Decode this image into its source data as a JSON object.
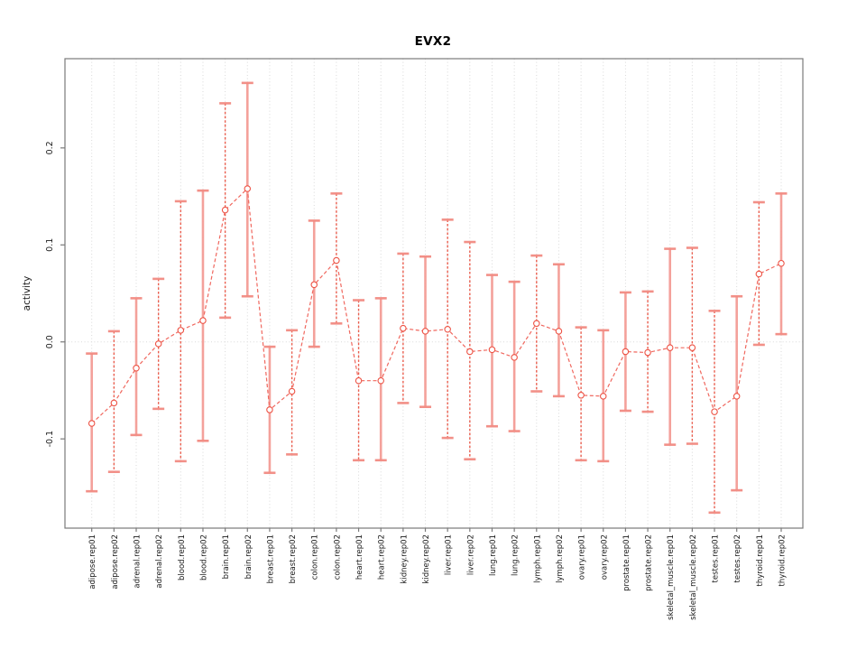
{
  "title": "EVX2",
  "chart_data": {
    "type": "errorbar-line",
    "title": "EVX2",
    "xlabel": "",
    "ylabel": "activity",
    "ylim": [
      -0.192,
      0.292
    ],
    "yticks": [
      -0.1,
      0.0,
      0.1,
      0.2
    ],
    "ytick_labels": [
      "-0.1",
      "0.0",
      "0.1",
      "0.2"
    ],
    "grid": {
      "vertical_dotted_per_category": true,
      "horizontal_dotted_at_zero": true
    },
    "legend": "none",
    "categories": [
      "adipose.rep01",
      "adipose.rep02",
      "adrenal.rep01",
      "adrenal.rep02",
      "blood.rep01",
      "blood.rep02",
      "brain.rep01",
      "brain.rep02",
      "breast.rep01",
      "breast.rep02",
      "colon.rep01",
      "colon.rep02",
      "heart.rep01",
      "heart.rep02",
      "kidney.rep01",
      "kidney.rep02",
      "liver.rep01",
      "liver.rep02",
      "lung.rep01",
      "lung.rep02",
      "lymph.rep01",
      "lymph.rep02",
      "ovary.rep01",
      "ovary.rep02",
      "prostate.rep01",
      "prostate.rep02",
      "skeletal_muscle.rep01",
      "skeletal_muscle.rep02",
      "testes.rep01",
      "testes.rep02",
      "thyroid.rep01",
      "thyroid.rep02"
    ],
    "series": [
      {
        "name": "activity",
        "center": [
          -0.084,
          -0.063,
          -0.027,
          -0.002,
          0.012,
          0.022,
          0.136,
          0.158,
          -0.07,
          -0.051,
          0.059,
          0.084,
          -0.04,
          -0.04,
          0.014,
          0.011,
          0.013,
          -0.01,
          -0.008,
          -0.016,
          0.019,
          0.011,
          -0.055,
          -0.056,
          -0.01,
          -0.011,
          -0.006,
          -0.006,
          -0.072,
          -0.056,
          0.07,
          0.081
        ],
        "lower": [
          -0.154,
          -0.134,
          -0.096,
          -0.069,
          -0.123,
          -0.102,
          0.025,
          0.047,
          -0.135,
          -0.116,
          -0.005,
          0.019,
          -0.122,
          -0.122,
          -0.063,
          -0.067,
          -0.099,
          -0.121,
          -0.087,
          -0.092,
          -0.051,
          -0.056,
          -0.122,
          -0.123,
          -0.071,
          -0.072,
          -0.106,
          -0.105,
          -0.176,
          -0.153,
          -0.003,
          0.008
        ],
        "upper": [
          -0.012,
          0.011,
          0.045,
          0.065,
          0.145,
          0.156,
          0.246,
          0.267,
          -0.005,
          0.012,
          0.125,
          0.153,
          0.043,
          0.045,
          0.091,
          0.088,
          0.126,
          0.103,
          0.069,
          0.062,
          0.089,
          0.08,
          0.015,
          0.012,
          0.051,
          0.052,
          0.096,
          0.097,
          0.032,
          0.047,
          0.144,
          0.153
        ],
        "bar_style": [
          "solid",
          "dashed",
          "solid",
          "dashed",
          "dashed",
          "solid",
          "dashed",
          "solid",
          "solid",
          "dashed",
          "solid",
          "dashed",
          "dashed",
          "solid",
          "dashed",
          "solid",
          "dashed",
          "dashed",
          "solid",
          "solid",
          "dashed",
          "solid",
          "dashed",
          "solid",
          "solid",
          "dashed",
          "solid",
          "dashed",
          "dashed",
          "solid",
          "dashed",
          "solid"
        ]
      }
    ],
    "colors": {
      "solid_bar": "#f49d96",
      "dashed_bar": "#e94f3e",
      "cap": "#f28b82",
      "line": "#f0685f",
      "marker": "#ed5345",
      "grid": "#d9d9d9",
      "axis": "#7a7a7a",
      "text": "#1a1a1a"
    }
  }
}
